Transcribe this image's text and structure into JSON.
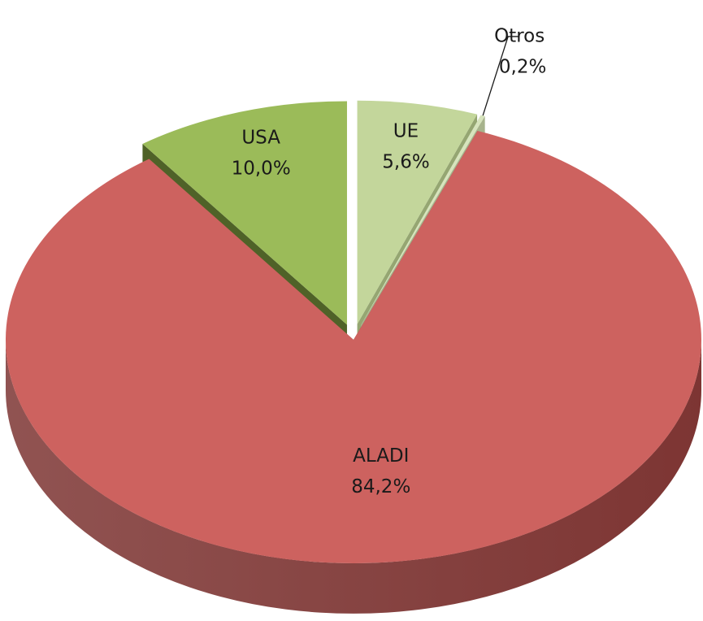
{
  "chart_data": {
    "type": "pie3d",
    "categories": [
      "UE",
      "Otros",
      "ALADI",
      "USA"
    ],
    "values": [
      5.6,
      0.2,
      84.2,
      10.0
    ],
    "value_labels": [
      "5,6%",
      "0,2%",
      "84,2%",
      "10,0%"
    ],
    "colors": [
      "#c3d69b",
      "#d7e4bd",
      "#cd625f",
      "#9bbb59"
    ],
    "side_colors": [
      "#95a672",
      "#a7b38c",
      "#7d3533",
      "#4f6228"
    ],
    "exploded": [
      true,
      true,
      false,
      true
    ]
  }
}
